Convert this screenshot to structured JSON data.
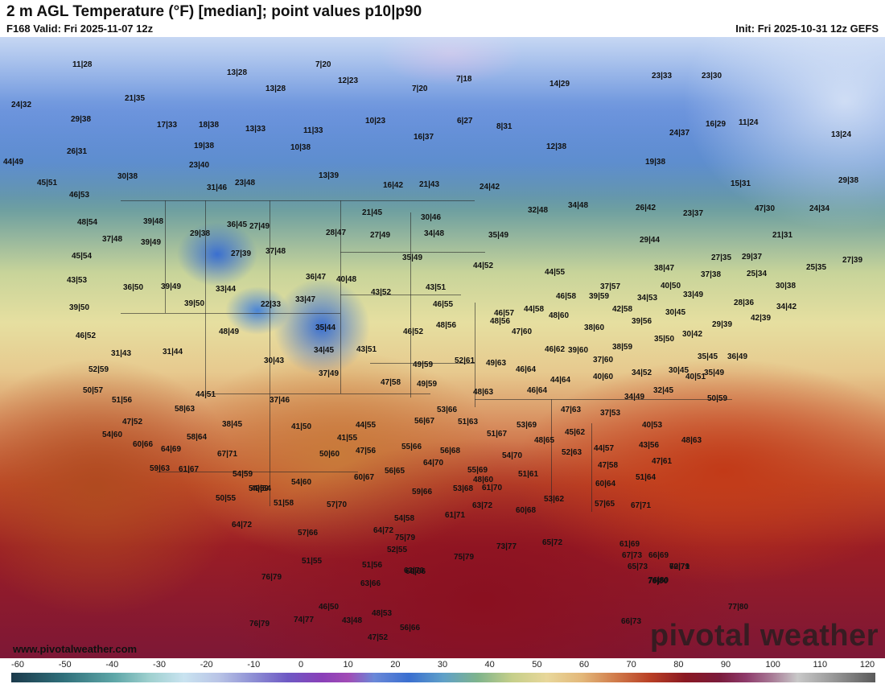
{
  "header": {
    "title": "2 m AGL Temperature (°F) [median]; point values p10|p90",
    "valid": "F168 Valid: Fri 2025-11-07 12z",
    "init": "Init: Fri 2025-10-31 12z GEFS"
  },
  "branding": {
    "url": "www.pivotalweather.com",
    "logo": "pivotal weather"
  },
  "colorbar": {
    "labels": [
      "-60",
      "-50",
      "-40",
      "-30",
      "-20",
      "-10",
      "0",
      "10",
      "20",
      "30",
      "40",
      "50",
      "60",
      "70",
      "80",
      "90",
      "100",
      "110",
      "120"
    ]
  },
  "points": [
    "11|28",
    "7|20",
    "12|23",
    "7|18",
    "13|28",
    "13|28",
    "7|20",
    "24|32",
    "21|35",
    "14|29",
    "23|33",
    "23|30",
    "29|38",
    "17|33",
    "18|38",
    "13|33",
    "11|33",
    "10|23",
    "6|27",
    "8|31",
    "16|29",
    "11|24",
    "16|37",
    "24|37",
    "13|24",
    "44|49",
    "26|31",
    "19|38",
    "10|38",
    "12|38",
    "19|38",
    "30|38",
    "23|40",
    "13|39",
    "45|51",
    "23|48",
    "31|46",
    "16|42",
    "21|43",
    "24|42",
    "15|31",
    "29|38",
    "46|53",
    "39|48",
    "27|49",
    "21|45",
    "32|48",
    "34|48",
    "26|42",
    "23|37",
    "47|30",
    "24|34",
    "48|54",
    "36|45",
    "30|46",
    "21|31",
    "37|48",
    "39|49",
    "29|38",
    "28|47",
    "27|49",
    "34|48",
    "35|49",
    "29|44",
    "27|35",
    "29|37",
    "45|54",
    "27|39",
    "37|48",
    "35|49",
    "44|52",
    "38|47",
    "25|34",
    "25|35",
    "27|39",
    "43|53",
    "36|50",
    "39|49",
    "33|44",
    "36|47",
    "40|48",
    "44|55",
    "37|38",
    "33|49",
    "40|50",
    "30|38",
    "39|50",
    "39|50",
    "22|33",
    "33|47",
    "43|52",
    "43|51",
    "46|58",
    "39|59",
    "37|57",
    "34|53",
    "28|36",
    "34|42",
    "46|55",
    "46|57",
    "44|58",
    "42|58",
    "30|45",
    "42|39",
    "46|52",
    "48|49",
    "35|44",
    "46|52",
    "48|56",
    "48|56",
    "47|60",
    "48|60",
    "38|60",
    "39|56",
    "29|39",
    "31|43",
    "31|44",
    "34|45",
    "43|51",
    "52|61",
    "46|62",
    "39|60",
    "38|59",
    "35|50",
    "30|42",
    "35|45",
    "36|49",
    "52|59",
    "30|43",
    "37|49",
    "49|59",
    "49|63",
    "46|64",
    "37|60",
    "34|52",
    "30|45",
    "35|49",
    "50|57",
    "47|58",
    "49|59",
    "44|64",
    "40|60",
    "32|45",
    "40|51",
    "51|56",
    "44|51",
    "37|46",
    "48|63",
    "46|64",
    "58|63",
    "53|66",
    "47|63",
    "34|49",
    "50|59",
    "47|52",
    "38|45",
    "41|50",
    "44|55",
    "56|67",
    "51|63",
    "53|69",
    "37|53",
    "40|53",
    "54|60",
    "58|64",
    "41|55",
    "55|66",
    "51|67",
    "48|65",
    "45|62",
    "44|57",
    "43|56",
    "48|63",
    "60|66",
    "64|69",
    "67|71",
    "50|60",
    "47|56",
    "56|68",
    "52|63",
    "47|61",
    "59|63",
    "61|67",
    "54|59",
    "54|59",
    "56|65",
    "64|70",
    "55|69",
    "54|70",
    "48|60",
    "47|58",
    "51|64",
    "49|54",
    "54|60",
    "60|67",
    "59|66",
    "51|61",
    "60|64",
    "50|55",
    "51|58",
    "57|70",
    "53|68",
    "61|70",
    "53|62",
    "57|65",
    "67|71",
    "64|72",
    "61|71",
    "63|72",
    "60|68",
    "54|58",
    "57|66",
    "64|72",
    "75|79",
    "75|79",
    "73|77",
    "65|72",
    "61|69",
    "52|55",
    "60|66",
    "63|70",
    "67|73",
    "65|73",
    "66|69",
    "51|55",
    "51|56",
    "70|79",
    "76|79",
    "63|66",
    "62|71",
    "76|80",
    "76|80",
    "46|50",
    "48|53",
    "77|80",
    "76|79",
    "74|77",
    "43|48",
    "56|66",
    "66|73",
    "47|52"
  ]
}
